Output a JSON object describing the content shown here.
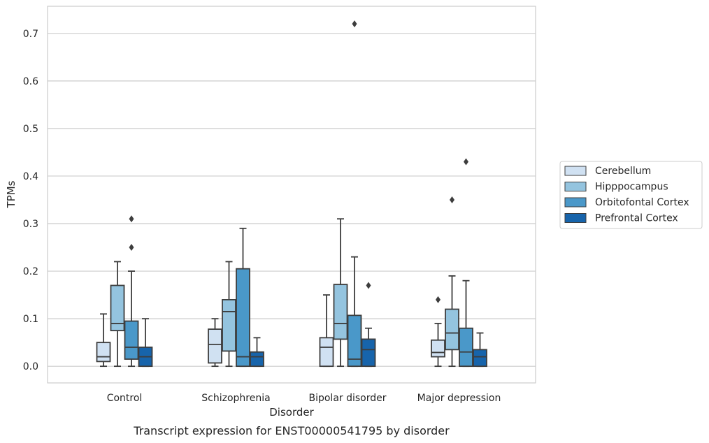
{
  "chart_data": {
    "type": "box",
    "xlabel": "Disorder",
    "ylabel": "TPMs",
    "caption": "Transcript expression for ENST00000541795 by disorder",
    "ylim": [
      -0.035,
      0.757
    ],
    "yticks": [
      0.0,
      0.1,
      0.2,
      0.3,
      0.4,
      0.5,
      0.6,
      0.7
    ],
    "ytick_labels": [
      "0.0",
      "0.1",
      "0.2",
      "0.3",
      "0.4",
      "0.5",
      "0.6",
      "0.7"
    ],
    "grid": "horizontal",
    "legend_placement": "right",
    "categories": [
      "Control",
      "Schizophrenia",
      "Bipolar disorder",
      "Major depression"
    ],
    "series": [
      {
        "name": "Cerebellum",
        "color": "#d0e1f2",
        "boxes": [
          {
            "whislo": 0.0,
            "q1": 0.01,
            "med": 0.02,
            "q3": 0.05,
            "whishi": 0.11,
            "fliers": []
          },
          {
            "whislo": 0.0,
            "q1": 0.007,
            "med": 0.046,
            "q3": 0.078,
            "whishi": 0.1,
            "fliers": []
          },
          {
            "whislo": 0.0,
            "q1": 0.0,
            "med": 0.04,
            "q3": 0.06,
            "whishi": 0.15,
            "fliers": []
          },
          {
            "whislo": 0.0,
            "q1": 0.02,
            "med": 0.029,
            "q3": 0.055,
            "whishi": 0.09,
            "fliers": [
              0.14
            ]
          }
        ]
      },
      {
        "name": "Hipppocampus",
        "color": "#94c4df",
        "boxes": [
          {
            "whislo": 0.0,
            "q1": 0.075,
            "med": 0.09,
            "q3": 0.17,
            "whishi": 0.22,
            "fliers": []
          },
          {
            "whislo": 0.0,
            "q1": 0.032,
            "med": 0.115,
            "q3": 0.14,
            "whishi": 0.22,
            "fliers": []
          },
          {
            "whislo": 0.0,
            "q1": 0.057,
            "med": 0.09,
            "q3": 0.172,
            "whishi": 0.31,
            "fliers": []
          },
          {
            "whislo": 0.0,
            "q1": 0.035,
            "med": 0.07,
            "q3": 0.12,
            "whishi": 0.19,
            "fliers": [
              0.35
            ]
          }
        ]
      },
      {
        "name": "Orbitofontal Cortex",
        "color": "#4a98c9",
        "boxes": [
          {
            "whislo": 0.0,
            "q1": 0.015,
            "med": 0.04,
            "q3": 0.095,
            "whishi": 0.2,
            "fliers": [
              0.25,
              0.31
            ]
          },
          {
            "whislo": 0.0,
            "q1": 0.0,
            "med": 0.02,
            "q3": 0.205,
            "whishi": 0.29,
            "fliers": []
          },
          {
            "whislo": 0.0,
            "q1": 0.0,
            "med": 0.015,
            "q3": 0.107,
            "whishi": 0.23,
            "fliers": [
              0.72
            ]
          },
          {
            "whislo": 0.0,
            "q1": 0.0,
            "med": 0.03,
            "q3": 0.08,
            "whishi": 0.18,
            "fliers": [
              0.43
            ]
          }
        ]
      },
      {
        "name": "Prefrontal Cortex",
        "color": "#1764ab",
        "boxes": [
          {
            "whislo": 0.0,
            "q1": 0.0,
            "med": 0.02,
            "q3": 0.04,
            "whishi": 0.1,
            "fliers": []
          },
          {
            "whislo": 0.0,
            "q1": 0.0,
            "med": 0.02,
            "q3": 0.03,
            "whishi": 0.06,
            "fliers": []
          },
          {
            "whislo": 0.0,
            "q1": 0.0,
            "med": 0.035,
            "q3": 0.057,
            "whishi": 0.08,
            "fliers": [
              0.17
            ]
          },
          {
            "whislo": 0.0,
            "q1": 0.0,
            "med": 0.02,
            "q3": 0.035,
            "whishi": 0.07,
            "fliers": []
          }
        ]
      }
    ]
  }
}
